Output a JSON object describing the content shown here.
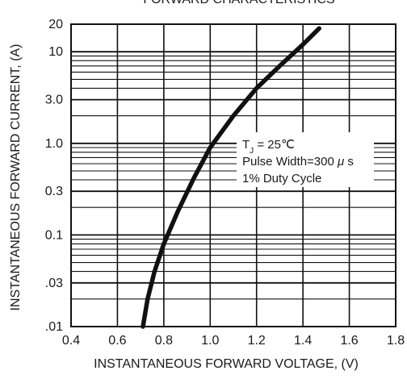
{
  "chart_data": {
    "type": "line",
    "title": "FORWARD CHARACTERISTICS",
    "xlabel": "INSTANTANEOUS FORWARD VOLTAGE, (V)",
    "ylabel": "INSTANTANEOUS FORWARD CURRENT, (A)",
    "xlim": [
      0.4,
      1.8
    ],
    "ylim": [
      0.01,
      20
    ],
    "yscale": "log",
    "grid": true,
    "x_ticks": [
      0.4,
      0.6,
      0.8,
      1.0,
      1.2,
      1.4,
      1.6,
      1.8
    ],
    "x_tick_labels": [
      "0.4",
      "0.6",
      "0.8",
      "1.0",
      "1.2",
      "1.4",
      "1.6",
      "1.8"
    ],
    "y_tick_values": [
      0.01,
      0.03,
      0.1,
      0.3,
      1.0,
      3.0,
      10,
      20
    ],
    "y_tick_labels": [
      ".01",
      ".03",
      "0.1",
      "0.3",
      "1.0",
      "3.0",
      "10",
      "20"
    ],
    "y_minor_gridlines": [
      0.02,
      0.04,
      0.05,
      0.06,
      0.07,
      0.08,
      0.09,
      0.2,
      0.4,
      0.5,
      0.6,
      0.7,
      0.8,
      0.9,
      2,
      4,
      5,
      6,
      7,
      8,
      9
    ],
    "series": [
      {
        "x": [
          0.71,
          0.73,
          0.76,
          0.8,
          0.86,
          0.93,
          1.0,
          1.1,
          1.2,
          1.3,
          1.4,
          1.47
        ],
        "values": [
          0.01,
          0.02,
          0.04,
          0.08,
          0.18,
          0.42,
          0.9,
          2.0,
          4.0,
          7.0,
          12.0,
          18.0
        ]
      }
    ],
    "annotation": {
      "lines": [
        "T_J = 25℃",
        "Pulse Width=300 μs",
        "1% Duty Cycle"
      ]
    },
    "colors": {
      "curve": "#111111",
      "grid": "#111111",
      "text": "#1a1a1a"
    }
  }
}
